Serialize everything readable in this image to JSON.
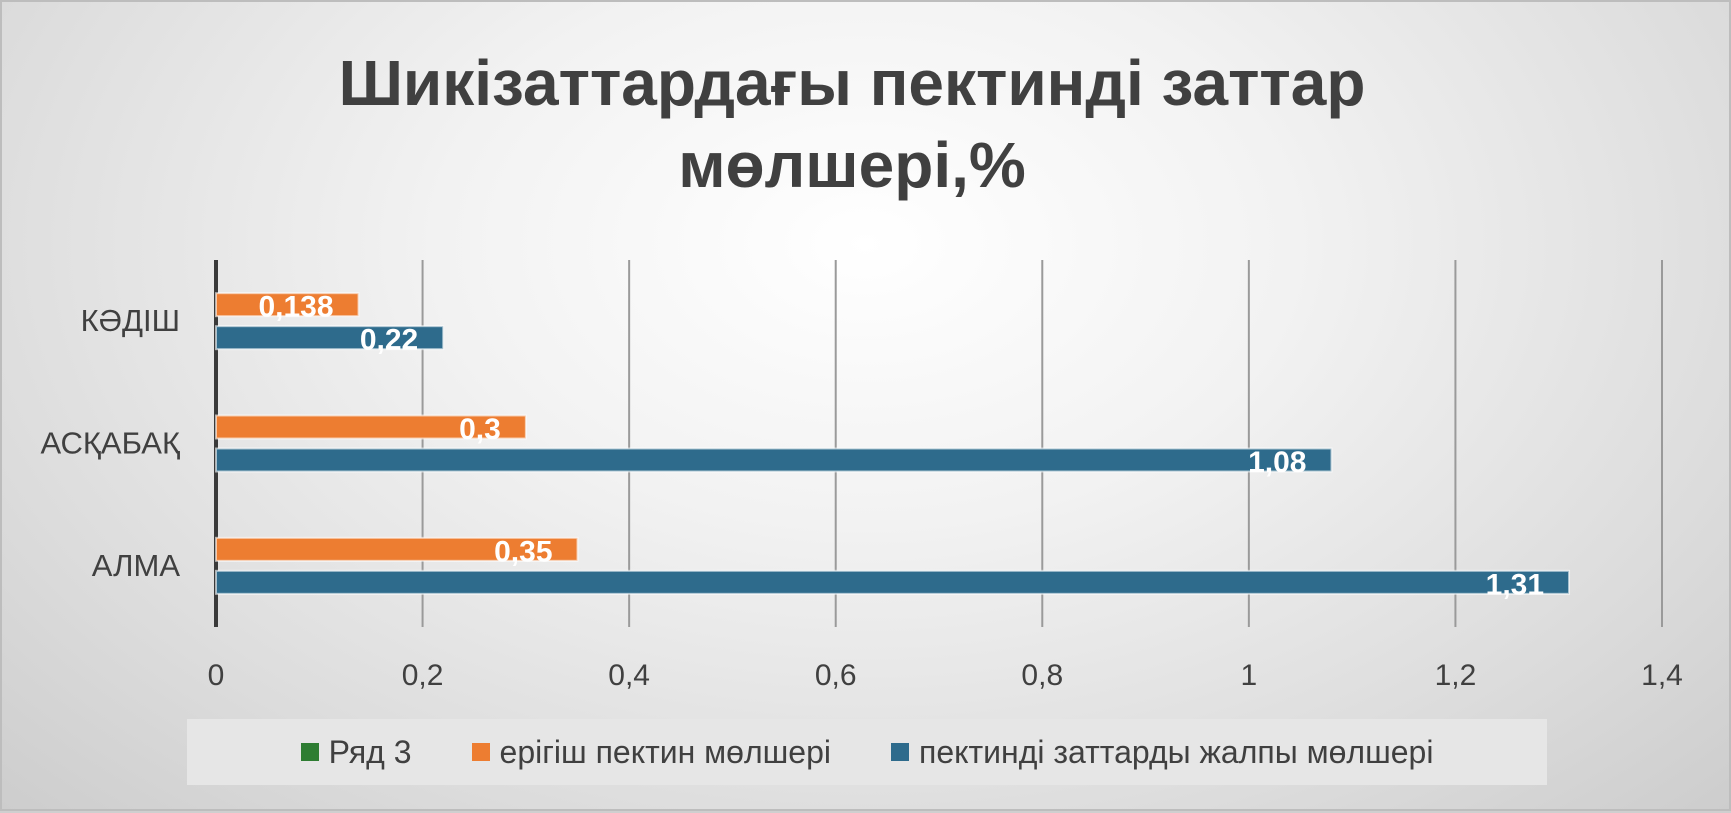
{
  "chart_data": {
    "type": "bar",
    "orientation": "horizontal",
    "title": "Шикізаттардағы пектинді заттар мөлшері,%",
    "categories": [
      "АЛМА",
      "АСҚАБАҚ",
      "КӘДІШ"
    ],
    "series": [
      {
        "name": "Ряд 3",
        "values": [
          null,
          null,
          null
        ],
        "color": "#2e7d32"
      },
      {
        "name": "ерігіш пектин мөлшері",
        "values": [
          0.35,
          0.3,
          0.138
        ],
        "labels": [
          "0,35",
          "0,3",
          "0,138"
        ],
        "color": "#ed7d31"
      },
      {
        "name": "пектинді заттарды жалпы мөлшері",
        "values": [
          1.31,
          1.08,
          0.22
        ],
        "labels": [
          "1,31",
          "1,08",
          "0,22"
        ],
        "color": "#2e6b8c"
      }
    ],
    "xlim": [
      0,
      1.4
    ],
    "xticks": [
      0,
      0.2,
      0.4,
      0.6,
      0.8,
      1,
      1.2,
      1.4
    ],
    "xtick_labels": [
      "0",
      "0,2",
      "0,4",
      "0,6",
      "0,8",
      "1",
      "1,2",
      "1,4"
    ],
    "grid": "vertical",
    "legend_position": "bottom"
  }
}
